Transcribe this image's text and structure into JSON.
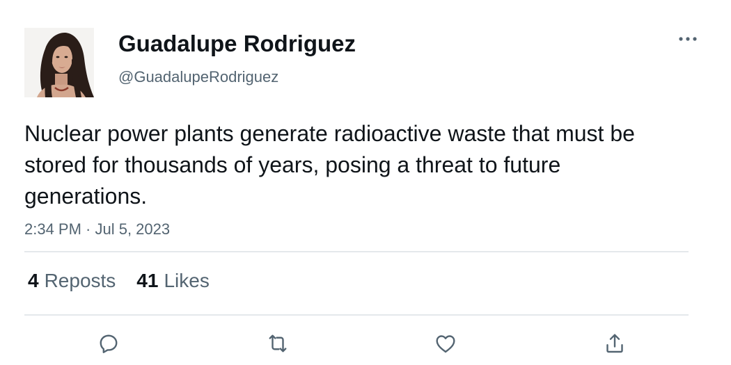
{
  "author": {
    "display_name": "Guadalupe Rodriguez",
    "handle": "@GuadalupeRodriguez",
    "avatar_icon": "profile-photo"
  },
  "tweet": {
    "text": "Nuclear power plants generate radioactive waste that must be stored for thousands of years, posing a threat to future generations.",
    "timestamp": "2:34 PM · Jul 5, 2023"
  },
  "stats": {
    "reposts_count": "4",
    "reposts_label": "Reposts",
    "likes_count": "41",
    "likes_label": "Likes"
  },
  "icons": {
    "more": "more-horizontal-icon",
    "reply": "reply-icon",
    "repost": "repost-icon",
    "like": "heart-icon",
    "share": "share-icon"
  },
  "colors": {
    "text_primary": "#0f1419",
    "text_secondary": "#536471",
    "divider": "#e4e8eb"
  }
}
